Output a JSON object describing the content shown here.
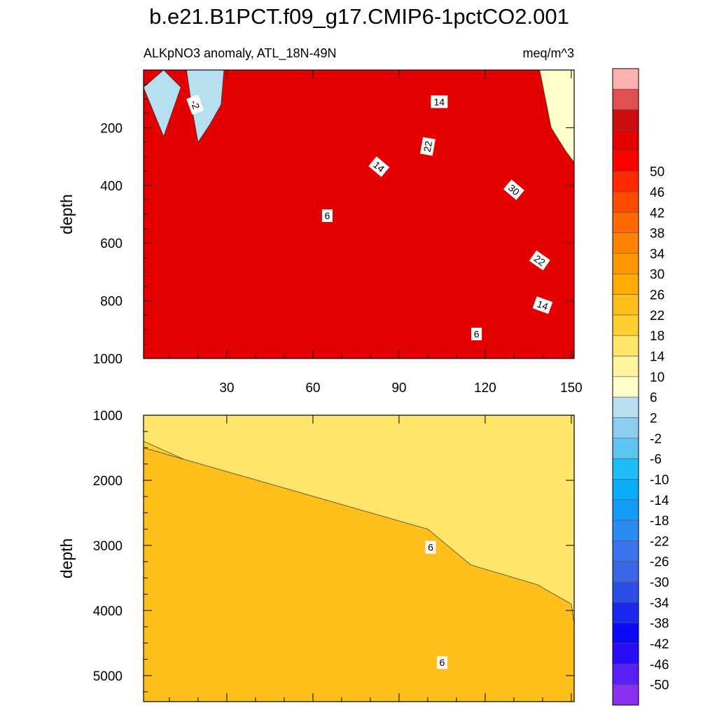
{
  "chart_data": {
    "type": "heatmap",
    "title": "b.e21.B1PCT.f09_g17.CMIP6-1pctCO2.001",
    "subtitle_left": "ALKpNO3 anomaly, ATL_18N-49N",
    "subtitle_right": "meq/m^3",
    "x_range": [
      1,
      151
    ],
    "x_ticks": [
      30,
      60,
      90,
      120,
      150
    ],
    "x_tick_labels": [
      "30",
      "60",
      "90",
      "120",
      "150"
    ],
    "colorbar": {
      "colors": [
        "#8a2ef2",
        "#5a1ef7",
        "#2b0cf7",
        "#0a0af7",
        "#1a28f0",
        "#2b4ee8",
        "#3a66e6",
        "#3a74ee",
        "#2a8cf0",
        "#129cf7",
        "#0aacfc",
        "#1ebef7",
        "#5ec4f2",
        "#8ccdf0",
        "#b6dff0",
        "#ffffcc",
        "#fff3a0",
        "#ffe56a",
        "#ffcf30",
        "#ffbf1a",
        "#ffad00",
        "#ff9800",
        "#ff8300",
        "#ff6a00",
        "#ff4a00",
        "#ff2800",
        "#ff0000",
        "#e40000",
        "#cc0d0d",
        "#e05050",
        "#ffb0b0"
      ],
      "levels": [
        -50,
        -46,
        -42,
        -38,
        -34,
        -30,
        -26,
        -22,
        -18,
        -14,
        -10,
        -6,
        -2,
        2,
        6,
        10,
        14,
        18,
        22,
        26,
        30,
        34,
        38,
        42,
        46,
        50
      ],
      "level_labels": [
        "-50",
        "-46",
        "-42",
        "-38",
        "-34",
        "-30",
        "-26",
        "-22",
        "-18",
        "-14",
        "-10",
        "-6",
        "-2",
        "2",
        "6",
        "10",
        "14",
        "18",
        "22",
        "26",
        "30",
        "34",
        "38",
        "42",
        "46",
        "50"
      ]
    },
    "panels": [
      {
        "ylabel": "depth",
        "y_range": [
          0,
          1000
        ],
        "y_reversed": true,
        "y_ticks": [
          200,
          400,
          600,
          800,
          1000
        ],
        "y_tick_labels": [
          "200",
          "400",
          "600",
          "800",
          "1000"
        ],
        "bands": [
          {
            "x": [
              1,
              35,
              51,
              66,
              79,
              92,
              98,
              151
            ],
            "y": [
              1000,
              1000,
              1000,
              1000,
              1000,
              1000,
              1000,
              1000
            ]
          },
          {
            "x": [
              1,
              35,
              51,
              66,
              79,
              92,
              98,
              151
            ],
            "y": [
              0,
              0,
              0,
              0,
              0,
              0,
              0,
              0
            ]
          },
          {
            "x": [
              1,
              35,
              41,
              51,
              66,
              79,
              92,
              98,
              151
            ],
            "y": [
              0,
              0,
              150,
              420,
              560,
              690,
              800,
              860,
              860
            ]
          },
          {
            "x": [
              1,
              40,
              55,
              66,
              79,
              92,
              98,
              151
            ],
            "y": [
              0,
              0,
              260,
              420,
              580,
              720,
              800,
              860
            ]
          },
          {
            "x": [
              1,
              47,
              60,
              73,
              86,
              100,
              119,
              151
            ],
            "y": [
              0,
              0,
              260,
              440,
              560,
              700,
              800,
              860
            ]
          },
          {
            "x": [
              1,
              54,
              67,
              79,
              90,
              104,
              124,
              151
            ],
            "y": [
              0,
              0,
              200,
              380,
              500,
              640,
              780,
              860
            ]
          },
          {
            "x": [
              1,
              61,
              74,
              86,
              98,
              112,
              130,
              151
            ],
            "y": [
              0,
              0,
              180,
              360,
              480,
              630,
              780,
              860
            ]
          },
          {
            "x": [
              1,
              70,
              84,
              96,
              108,
              122,
              140,
              151
            ],
            "y": [
              0,
              0,
              160,
              340,
              460,
              610,
              760,
              860
            ]
          },
          {
            "x": [
              1,
              80,
              95,
              108,
              120,
              133,
              151
            ],
            "y": [
              0,
              0,
              170,
              320,
              460,
              600,
              760
            ]
          },
          {
            "x": [
              1,
              93,
              106,
              118,
              131,
              143,
              151
            ],
            "y": [
              0,
              0,
              170,
              330,
              470,
              620,
              720
            ]
          },
          {
            "x": [
              1,
              105,
              115,
              126,
              138,
              151
            ],
            "y": [
              0,
              0,
              180,
              330,
              470,
              600
            ]
          },
          {
            "x": [
              1,
              118,
              126,
              136,
              145,
              151
            ],
            "y": [
              0,
              0,
              200,
              340,
              450,
              520
            ]
          },
          {
            "x": [
              1,
              130,
              136,
              143,
              151
            ],
            "y": [
              0,
              0,
              220,
              330,
              420
            ]
          },
          {
            "x": [
              1,
              139,
              143,
              148,
              151
            ],
            "y": [
              0,
              0,
              200,
              280,
              320
            ]
          }
        ],
        "contour_labels": [
          {
            "x": 19,
            "y": 120,
            "text": "-2",
            "angle": 70
          },
          {
            "x": 104,
            "y": 110,
            "text": "14",
            "angle": 0
          },
          {
            "x": 100,
            "y": 265,
            "text": "22",
            "angle": -80
          },
          {
            "x": 83,
            "y": 335,
            "text": "14",
            "angle": 40
          },
          {
            "x": 130,
            "y": 415,
            "text": "30",
            "angle": 40
          },
          {
            "x": 65,
            "y": 505,
            "text": "6",
            "angle": 0
          },
          {
            "x": 139,
            "y": 660,
            "text": "22",
            "angle": 35
          },
          {
            "x": 140,
            "y": 815,
            "text": "14",
            "angle": 20
          },
          {
            "x": 117,
            "y": 915,
            "text": "6",
            "angle": 0
          }
        ]
      },
      {
        "ylabel": "depth",
        "y_range": [
          1000,
          5400
        ],
        "y_reversed": true,
        "y_ticks": [
          1000,
          2000,
          3000,
          4000,
          5000
        ],
        "y_tick_labels": [
          "1000",
          "2000",
          "3000",
          "4000",
          "5000"
        ],
        "bands": [
          {
            "x": [
              1,
              151
            ],
            "y": [
              5400,
              5400
            ]
          },
          {
            "x": [
              1,
              151
            ],
            "y": [
              1000,
              1000
            ]
          },
          {
            "x": [
              1,
              97,
              120,
              118,
              92,
              86,
              74,
              60,
              46,
              38,
              36,
              42,
              60,
              80,
              85,
              96,
              151
            ],
            "y": [
              1000,
              1000,
              1400,
              1560,
              1800,
              1950,
              2600,
              3350,
              3700,
              4050,
              4300,
              4700,
              5100,
              5400,
              5400,
              5400,
              5400
            ]
          },
          {
            "x": [
              1,
              112,
              151,
              151,
              151
            ],
            "y": [
              1000,
              1000,
              1000,
              1000,
              1000
            ]
          },
          {
            "x": [
              1,
              72,
              76,
              88,
              96,
              111,
              120,
              151,
              151
            ],
            "y": [
              1400,
              2800,
              3000,
              3800,
              4250,
              4800,
              5400,
              5400,
              5400
            ]
          },
          {
            "x": [
              1,
              100,
              115,
              138,
              150,
              151,
              151
            ],
            "y": [
              1500,
              2750,
              3300,
              3600,
              3900,
              4200,
              4500
            ]
          }
        ],
        "contour_labels": [
          {
            "x": 101,
            "y": 3030,
            "text": "6",
            "angle": 0
          },
          {
            "x": 105,
            "y": 4800,
            "text": "6",
            "angle": 0
          }
        ]
      }
    ]
  }
}
